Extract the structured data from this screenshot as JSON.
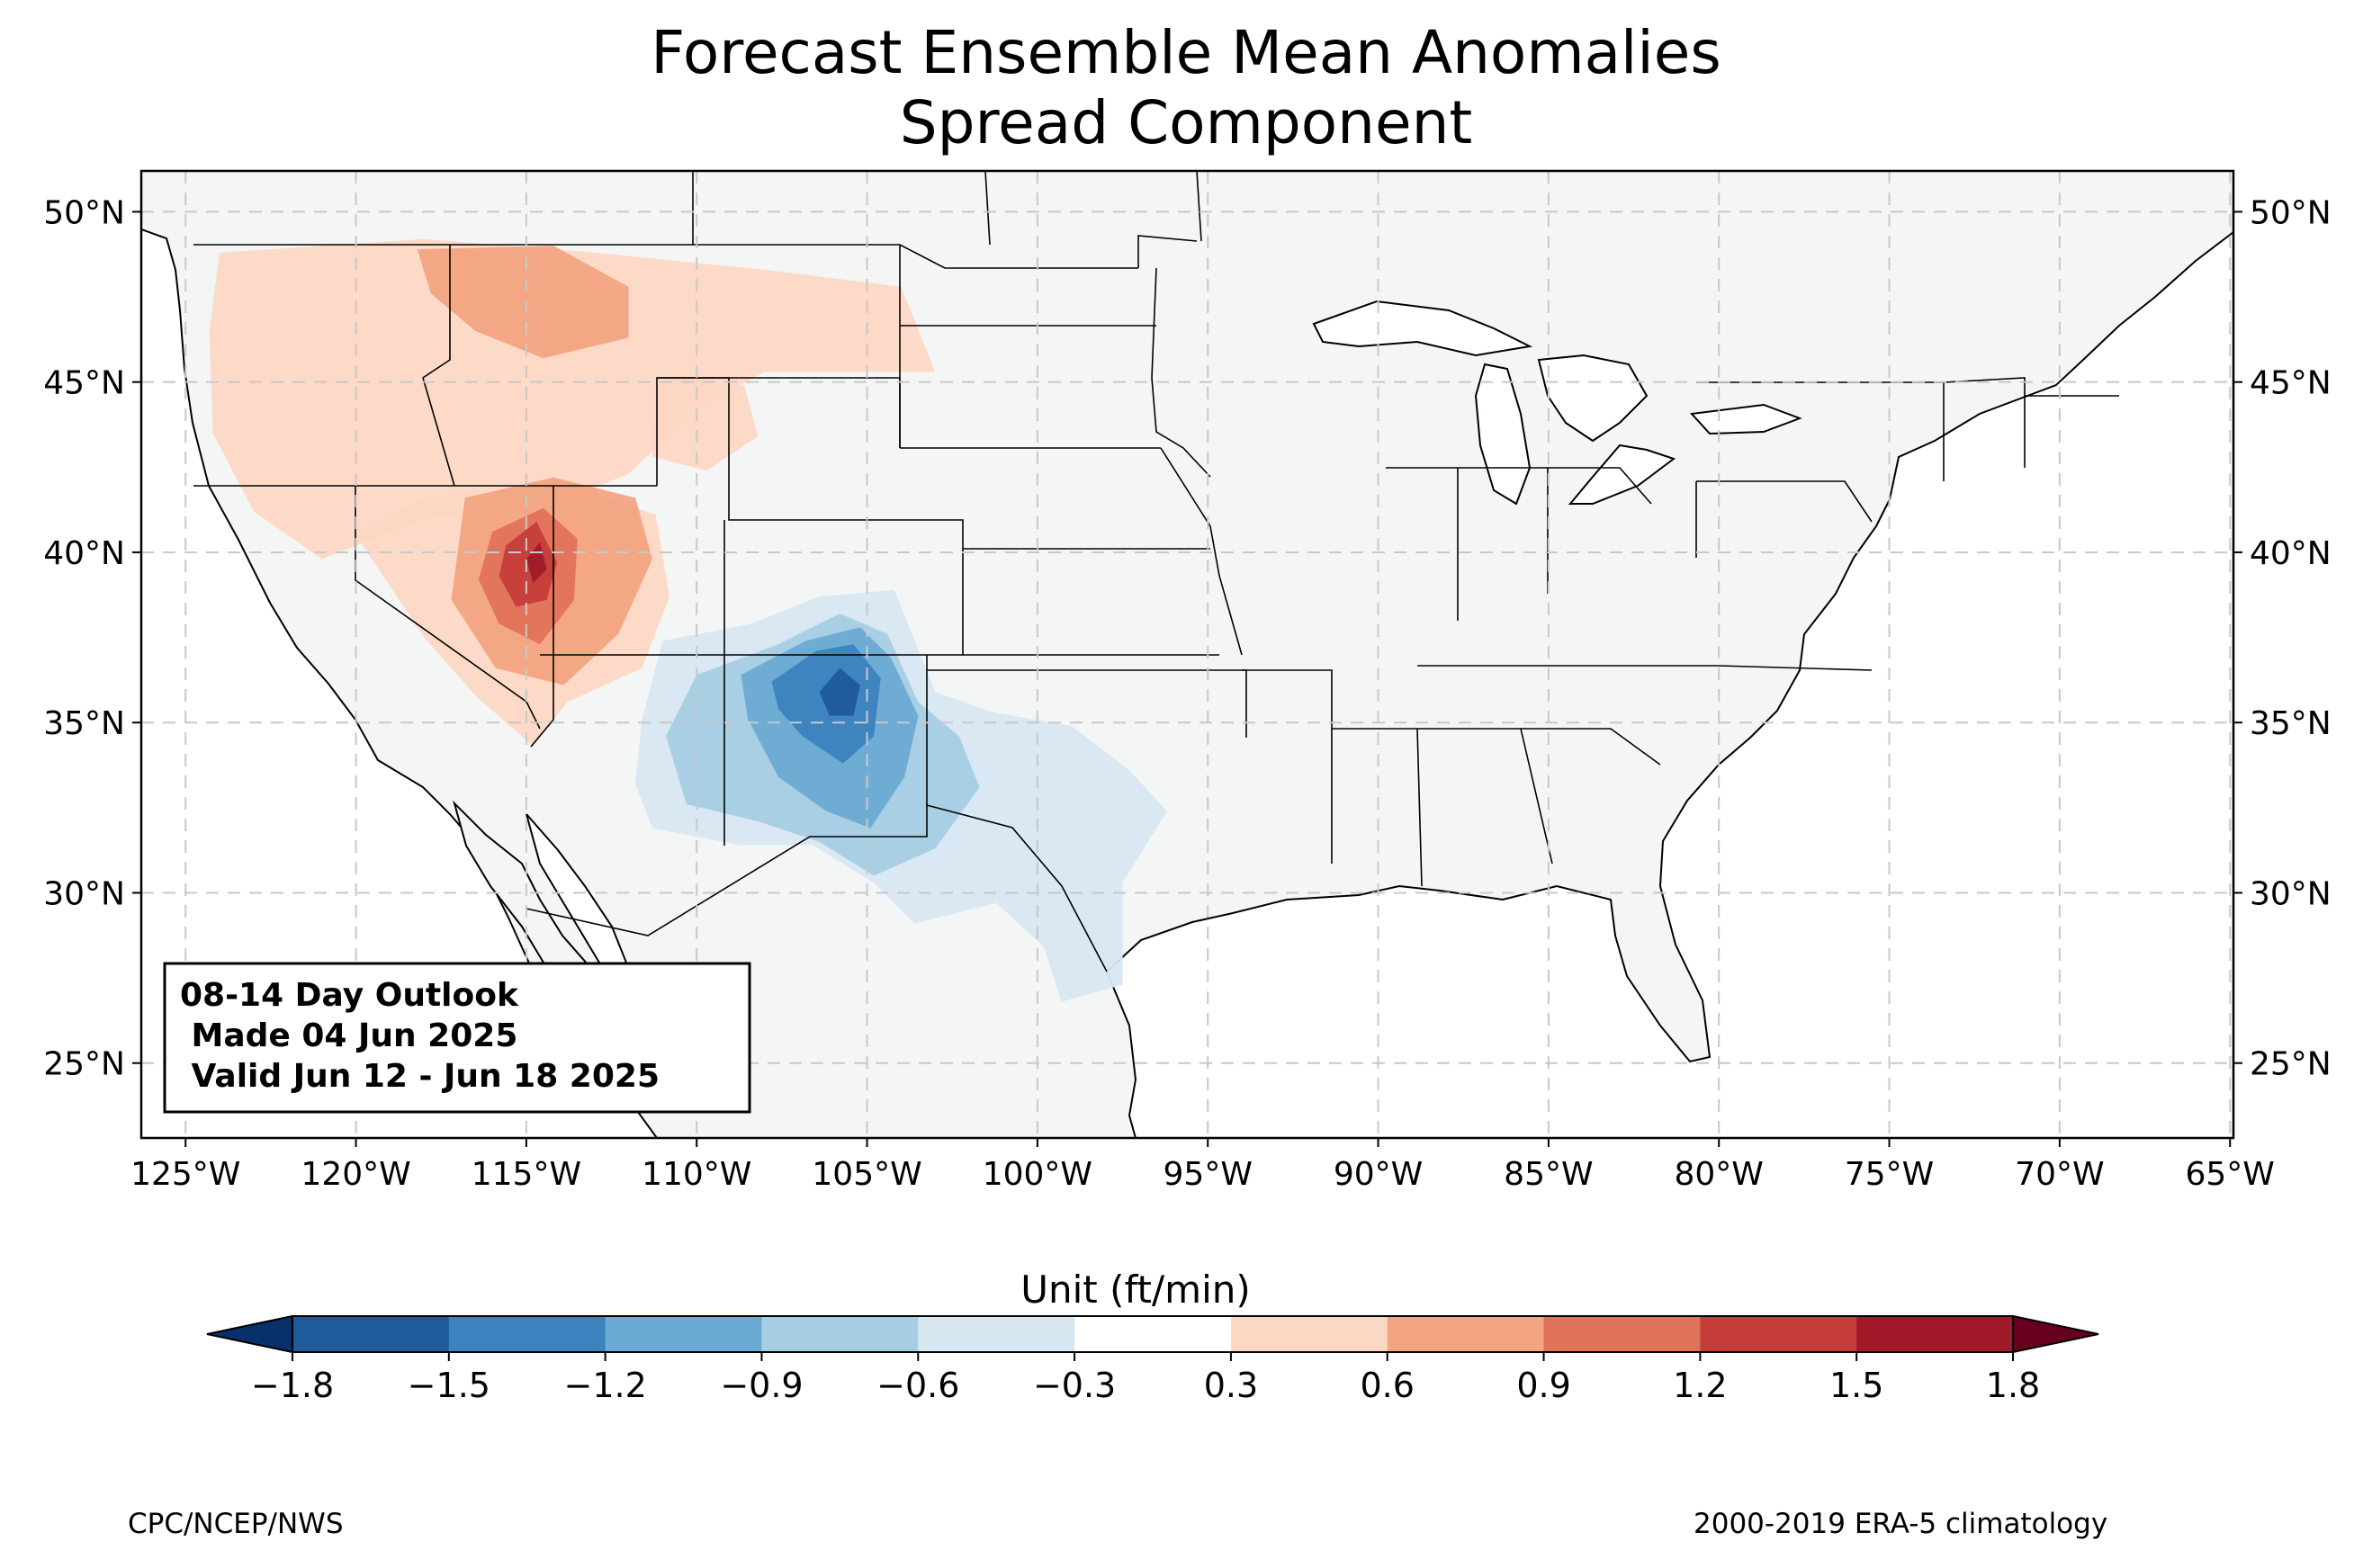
{
  "title": {
    "line1": "Forecast Ensemble Mean Anomalies",
    "line2": "Spread Component"
  },
  "map": {
    "extent": {
      "lon": [
        -126.3,
        -64.9
      ],
      "lat": [
        22.8,
        51.2
      ]
    },
    "grid": true,
    "lat_ticks": [
      {
        "value": 50,
        "label": "50°N"
      },
      {
        "value": 45,
        "label": "45°N"
      },
      {
        "value": 40,
        "label": "40°N"
      },
      {
        "value": 35,
        "label": "35°N"
      },
      {
        "value": 30,
        "label": "30°N"
      },
      {
        "value": 25,
        "label": "25°N"
      }
    ],
    "lon_ticks": [
      {
        "value": -125,
        "label": "125°W"
      },
      {
        "value": -120,
        "label": "120°W"
      },
      {
        "value": -115,
        "label": "115°W"
      },
      {
        "value": -110,
        "label": "110°W"
      },
      {
        "value": -105,
        "label": "105°W"
      },
      {
        "value": -100,
        "label": "100°W"
      },
      {
        "value": -95,
        "label": "95°W"
      },
      {
        "value": -90,
        "label": "90°W"
      },
      {
        "value": -85,
        "label": "85°W"
      },
      {
        "value": -80,
        "label": "80°W"
      },
      {
        "value": -75,
        "label": "75°W"
      },
      {
        "value": -70,
        "label": "70°W"
      },
      {
        "value": -65,
        "label": "65°W"
      }
    ],
    "land_color": "#f4f6f6",
    "anomaly_regions": [
      {
        "name": "northwest-positive",
        "level": 0.3,
        "polygon": [
          [
            -124,
            48.8
          ],
          [
            -118,
            49.2
          ],
          [
            -113,
            48.8
          ],
          [
            -108,
            48.3
          ],
          [
            -104,
            47.8
          ],
          [
            -103,
            45.3
          ],
          [
            -108,
            45.3
          ],
          [
            -110,
            44.2
          ],
          [
            -112,
            42.3
          ],
          [
            -114,
            41.5
          ],
          [
            -118,
            41.0
          ],
          [
            -121,
            39.8
          ],
          [
            -123,
            41.2
          ],
          [
            -124.2,
            43.5
          ],
          [
            -124.3,
            46.5
          ]
        ]
      },
      {
        "name": "basin-positive",
        "level": 0.3,
        "polygon": [
          [
            -120,
            40.5
          ],
          [
            -118,
            37.5
          ],
          [
            -116.5,
            35.8
          ],
          [
            -114.8,
            34.3
          ],
          [
            -113.8,
            35.6
          ],
          [
            -111.6,
            36.6
          ],
          [
            -110.8,
            38.7
          ],
          [
            -111.2,
            41.1
          ],
          [
            -114,
            42.1
          ],
          [
            -118,
            41.6
          ]
        ]
      },
      {
        "name": "montana-positive",
        "level": 0.6,
        "polygon": [
          [
            -118.2,
            48.9
          ],
          [
            -114.2,
            49.0
          ],
          [
            -112,
            47.8
          ],
          [
            -112,
            46.3
          ],
          [
            -114.5,
            45.7
          ],
          [
            -116.5,
            46.5
          ],
          [
            -117.8,
            47.6
          ]
        ]
      },
      {
        "name": "wyoming-positive",
        "level": 0.3,
        "polygon": [
          [
            -111.2,
            45.2
          ],
          [
            -108.6,
            44.9
          ],
          [
            -108.2,
            43.4
          ],
          [
            -109.7,
            42.4
          ],
          [
            -111.3,
            42.8
          ]
        ]
      },
      {
        "name": "nevada-utah-positive",
        "level": 0.6,
        "polygon": [
          [
            -116.8,
            41.6
          ],
          [
            -114.2,
            42.2
          ],
          [
            -111.8,
            41.6
          ],
          [
            -111.3,
            39.8
          ],
          [
            -112.3,
            37.6
          ],
          [
            -113.9,
            36.1
          ],
          [
            -115.9,
            36.6
          ],
          [
            -117.2,
            38.6
          ]
        ]
      },
      {
        "name": "nevada-utah-core",
        "level": 0.9,
        "polygon": [
          [
            -116,
            40.6
          ],
          [
            -114.5,
            41.3
          ],
          [
            -113.5,
            40.4
          ],
          [
            -113.6,
            38.6
          ],
          [
            -114.6,
            37.3
          ],
          [
            -115.8,
            37.9
          ],
          [
            -116.4,
            39.2
          ]
        ]
      },
      {
        "name": "nevada-utah-strong",
        "level": 1.2,
        "polygon": [
          [
            -115.6,
            40.2
          ],
          [
            -114.7,
            40.9
          ],
          [
            -114.1,
            39.7
          ],
          [
            -114.4,
            38.6
          ],
          [
            -115.3,
            38.4
          ],
          [
            -115.8,
            39.3
          ]
        ]
      },
      {
        "name": "nevada-utah-peak",
        "level": 1.5,
        "polygon": [
          [
            -115,
            39.8
          ],
          [
            -114.6,
            40.3
          ],
          [
            -114.4,
            39.5
          ],
          [
            -114.8,
            39.1
          ]
        ]
      },
      {
        "name": "southwest-negative",
        "level": -0.3,
        "polygon": [
          [
            -111,
            37.4
          ],
          [
            -108.4,
            37.9
          ],
          [
            -106.4,
            38.7
          ],
          [
            -104.2,
            38.9
          ],
          [
            -103,
            35.9
          ],
          [
            -101.3,
            35.3
          ],
          [
            -99,
            34.9
          ],
          [
            -97.3,
            33.6
          ],
          [
            -96.2,
            32.4
          ],
          [
            -97.5,
            30.3
          ],
          [
            -97.5,
            27.3
          ],
          [
            -99.3,
            26.8
          ],
          [
            -99.8,
            28.4
          ],
          [
            -101.2,
            29.7
          ],
          [
            -103.6,
            29.1
          ],
          [
            -104.8,
            30.3
          ],
          [
            -106.6,
            31.4
          ],
          [
            -108.7,
            31.4
          ],
          [
            -111.3,
            31.9
          ],
          [
            -111.8,
            33.2
          ],
          [
            -111.6,
            35.1
          ]
        ]
      },
      {
        "name": "southwest-moderate",
        "level": -0.6,
        "polygon": [
          [
            -110,
            36.4
          ],
          [
            -107.6,
            37.3
          ],
          [
            -105.8,
            38.2
          ],
          [
            -104.4,
            37.6
          ],
          [
            -103.5,
            35.6
          ],
          [
            -102.3,
            34.6
          ],
          [
            -101.7,
            33.1
          ],
          [
            -103,
            31.3
          ],
          [
            -104.8,
            30.5
          ],
          [
            -106.4,
            31.5
          ],
          [
            -108.2,
            32.1
          ],
          [
            -110.3,
            32.6
          ],
          [
            -110.9,
            34.6
          ]
        ]
      },
      {
        "name": "new-mexico-strong",
        "level": -0.9,
        "polygon": [
          [
            -108.7,
            36.4
          ],
          [
            -106.8,
            37.4
          ],
          [
            -105.2,
            37.8
          ],
          [
            -104.3,
            36.9
          ],
          [
            -103.5,
            35.2
          ],
          [
            -103.9,
            33.4
          ],
          [
            -104.9,
            31.9
          ],
          [
            -106.2,
            32.4
          ],
          [
            -107.6,
            33.4
          ],
          [
            -108.5,
            35.1
          ]
        ]
      },
      {
        "name": "new-mexico-core",
        "level": -1.2,
        "polygon": [
          [
            -107.8,
            36.2
          ],
          [
            -106.5,
            37.1
          ],
          [
            -105.4,
            37.3
          ],
          [
            -104.6,
            36.3
          ],
          [
            -104.8,
            34.6
          ],
          [
            -105.7,
            33.8
          ],
          [
            -106.9,
            34.6
          ],
          [
            -107.6,
            35.4
          ]
        ]
      },
      {
        "name": "new-mexico-peak",
        "level": -1.5,
        "polygon": [
          [
            -106.4,
            35.9
          ],
          [
            -105.8,
            36.6
          ],
          [
            -105.2,
            36.1
          ],
          [
            -105.4,
            35.2
          ],
          [
            -106.1,
            35.2
          ]
        ]
      }
    ]
  },
  "info_box": {
    "line1": "08-14 Day Outlook",
    "line2": " Made 04 Jun 2025",
    "line3": " Valid Jun 12 - Jun 18 2025"
  },
  "colorbar": {
    "label": "Unit (ft/min)",
    "levels": [
      -1.8,
      -1.5,
      -1.2,
      -0.9,
      -0.6,
      -0.3,
      0.3,
      0.6,
      0.9,
      1.2,
      1.5,
      1.8
    ],
    "tick_labels": [
      "−1.8",
      "−1.5",
      "−1.2",
      "−0.9",
      "−0.6",
      "−0.3",
      "0.3",
      "0.6",
      "0.9",
      "1.2",
      "1.5",
      "1.8"
    ],
    "colors": [
      "#1f5a9b",
      "#3b82be",
      "#6baad3",
      "#a7cde3",
      "#d7e7f1",
      "#ffffff",
      "#fcd8c4",
      "#f3a482",
      "#e0725a",
      "#c53d3a",
      "#a11a2a"
    ],
    "under_color": "#08306b",
    "over_color": "#67001f"
  },
  "footer": {
    "left": "CPC/NCEP/NWS",
    "right": "2000-2019 ERA-5 climatology"
  }
}
